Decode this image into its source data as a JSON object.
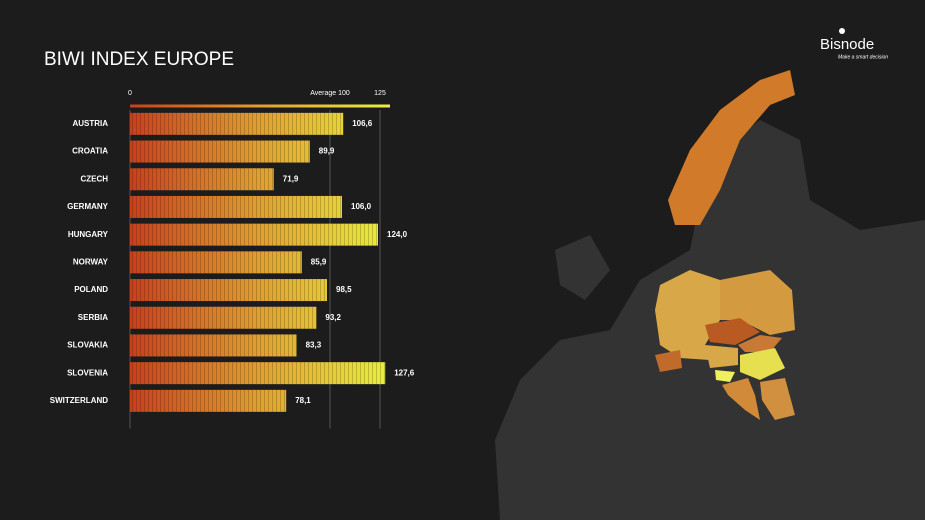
{
  "chart_data": {
    "type": "bar",
    "orientation": "horizontal",
    "title": "BIWI INDEX EUROPE",
    "categories": [
      "AUSTRIA",
      "CROATIA",
      "CZECH",
      "GERMANY",
      "HUNGARY",
      "NORWAY",
      "POLAND",
      "SERBIA",
      "SLOVAKIA",
      "SLOVENIA",
      "SWITZERLAND"
    ],
    "values": [
      106.6,
      89.9,
      71.9,
      106,
      124,
      85.9,
      98.5,
      93.2,
      83.3,
      127.6,
      78.1
    ],
    "value_labels": [
      "106,6",
      "89,9",
      "71,9",
      "106,0",
      "124,0",
      "85,9",
      "98,5",
      "93,2",
      "83,3",
      "127,6",
      "78,1"
    ],
    "colors": [
      "#c8401c",
      "#e0a030",
      "#e8f040"
    ],
    "xlim": [
      0,
      130
    ],
    "xticks": [
      0,
      {
        "value": 100,
        "label": "Average 100"
      },
      125
    ],
    "grid": true
  },
  "logo": {
    "name": "Bisnode",
    "tagline": "Make a smart decision"
  }
}
